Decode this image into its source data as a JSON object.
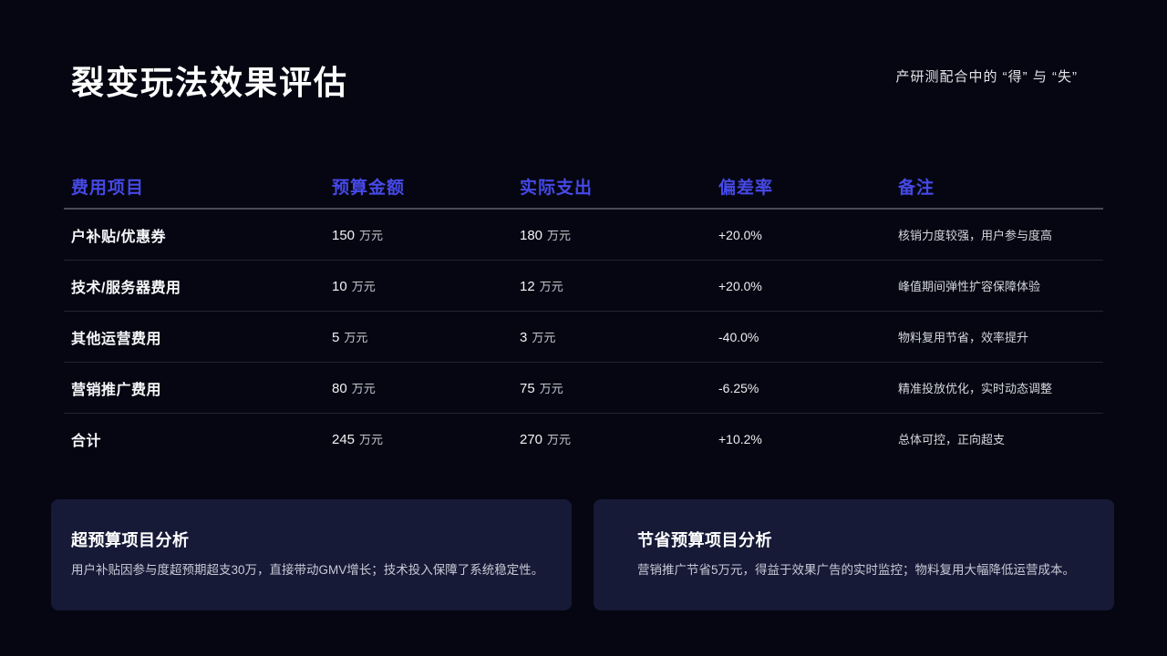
{
  "header": {
    "title": "裂变玩法效果评估",
    "subtitle": "产研测配合中的 “得” 与 “失”"
  },
  "table": {
    "columns": [
      "费用项目",
      "预算金额",
      "实际支出",
      "偏差率",
      "备注"
    ],
    "unit": "万元",
    "rows": [
      {
        "item": "户补贴/优惠券",
        "budget": "150",
        "actual": "180",
        "deviation": "+20.0%",
        "note": "核销力度较强，用户参与度高"
      },
      {
        "item": "技术/服务器费用",
        "budget": "10",
        "actual": "12",
        "deviation": "+20.0%",
        "note": "峰值期间弹性扩容保障体验"
      },
      {
        "item": "其他运营费用",
        "budget": "5",
        "actual": "3",
        "deviation": "-40.0%",
        "note": "物料复用节省，效率提升"
      },
      {
        "item": "营销推广费用",
        "budget": "80",
        "actual": "75",
        "deviation": "-6.25%",
        "note": "精准投放优化，实时动态调整"
      },
      {
        "item": "合计",
        "budget": "245",
        "actual": "270",
        "deviation": "+10.2%",
        "note": "总体可控，正向超支"
      }
    ]
  },
  "cards": [
    {
      "title": "超预算项目分析",
      "body": "用户补贴因参与度超预期超支30万，直接带动GMV增长；技术投入保障了系统稳定性。"
    },
    {
      "title": "节省预算项目分析",
      "body": "营销推广节省5万元，得益于效果广告的实时监控；物料复用大幅降低运营成本。"
    }
  ],
  "colors": {
    "accent": "#4649e6",
    "bg": "#050611",
    "card_bg": "#161a37"
  }
}
